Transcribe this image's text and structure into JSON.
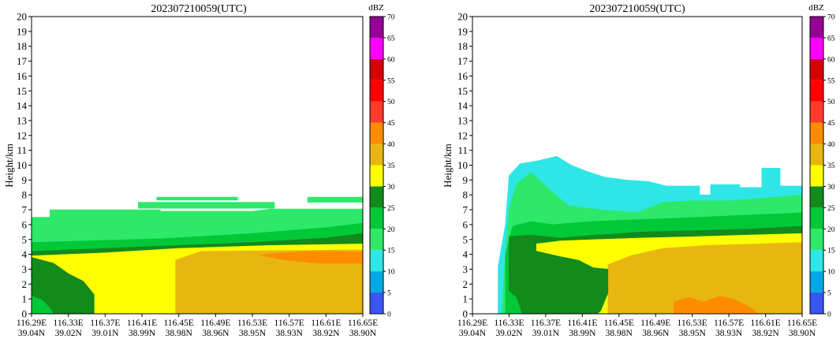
{
  "palette": [
    {
      "min": 0,
      "max": 5,
      "color": "#3a55f2"
    },
    {
      "min": 5,
      "max": 10,
      "color": "#00a8e6"
    },
    {
      "min": 10,
      "max": 15,
      "color": "#2ee6e6"
    },
    {
      "min": 15,
      "max": 20,
      "color": "#2ee86a"
    },
    {
      "min": 20,
      "max": 25,
      "color": "#00c837"
    },
    {
      "min": 25,
      "max": 30,
      "color": "#138a1c"
    },
    {
      "min": 30,
      "max": 35,
      "color": "#ffff00"
    },
    {
      "min": 35,
      "max": 40,
      "color": "#e8b610"
    },
    {
      "min": 40,
      "max": 45,
      "color": "#ff8c00"
    },
    {
      "min": 45,
      "max": 50,
      "color": "#ff3b2b"
    },
    {
      "min": 50,
      "max": 55,
      "color": "#ff0000"
    },
    {
      "min": 55,
      "max": 60,
      "color": "#d60000"
    },
    {
      "min": 60,
      "max": 65,
      "color": "#ff00ff"
    },
    {
      "min": 65,
      "max": 70,
      "color": "#960096"
    }
  ],
  "chart_data": [
    {
      "type": "heatmap",
      "title": "202307210059(UTC)",
      "ylabel": "Height/km",
      "ylim": [
        0,
        20
      ],
      "yticks": [
        "0",
        "1",
        "2",
        "3",
        "4",
        "5",
        "6",
        "7",
        "8",
        "9",
        "10",
        "11",
        "12",
        "13",
        "14",
        "15",
        "16",
        "17",
        "18",
        "19",
        "20"
      ],
      "xticks": [
        {
          "lon": "116.29E",
          "lat": "39.04N"
        },
        {
          "lon": "116.33E",
          "lat": "39.02N"
        },
        {
          "lon": "116.37E",
          "lat": "39.01N"
        },
        {
          "lon": "116.41E",
          "lat": "38.99N"
        },
        {
          "lon": "116.45E",
          "lat": "38.98N"
        },
        {
          "lon": "116.49E",
          "lat": "38.96N"
        },
        {
          "lon": "116.53E",
          "lat": "38.95N"
        },
        {
          "lon": "116.57E",
          "lat": "38.93N"
        },
        {
          "lon": "116.61E",
          "lat": "38.92N"
        },
        {
          "lon": "116.65E",
          "lat": "38.90N"
        }
      ],
      "colorbar_label": "dBZ",
      "colorbar_ticks": [
        "0",
        "5",
        "10",
        "15",
        "20",
        "25",
        "30",
        "35",
        "40",
        "45",
        "50",
        "55",
        "60",
        "65",
        "70"
      ],
      "layers": [
        {
          "dbz": 17,
          "pts": [
            [
              0,
              0
            ],
            [
              0,
              6.5
            ],
            [
              0.5,
              6.5
            ],
            [
              0.5,
              7
            ],
            [
              3.5,
              7
            ],
            [
              3.5,
              6.9
            ],
            [
              6,
              6.9
            ],
            [
              6.5,
              7.05
            ],
            [
              9,
              7.05
            ],
            [
              9,
              0
            ]
          ]
        },
        {
          "dbz": 17,
          "pts": [
            [
              2.9,
              7.1
            ],
            [
              6.6,
              7.1
            ],
            [
              6.6,
              7.5
            ],
            [
              2.9,
              7.5
            ]
          ]
        },
        {
          "dbz": 17,
          "pts": [
            [
              3.4,
              7.65
            ],
            [
              5.6,
              7.65
            ],
            [
              5.6,
              7.85
            ],
            [
              3.4,
              7.85
            ]
          ]
        },
        {
          "dbz": 17,
          "pts": [
            [
              7.5,
              7.5
            ],
            [
              9,
              7.5
            ],
            [
              9,
              7.85
            ],
            [
              7.5,
              7.85
            ]
          ]
        },
        {
          "dbz": 22,
          "pts": [
            [
              0,
              0
            ],
            [
              0,
              4.8
            ],
            [
              1.5,
              4.9
            ],
            [
              3.5,
              5.05
            ],
            [
              6,
              5.4
            ],
            [
              8,
              5.8
            ],
            [
              9,
              6.1
            ],
            [
              9,
              0
            ]
          ]
        },
        {
          "dbz": 27,
          "pts": [
            [
              0,
              0
            ],
            [
              0,
              4.2
            ],
            [
              1.5,
              4.35
            ],
            [
              3.5,
              4.55
            ],
            [
              6,
              4.8
            ],
            [
              8,
              5.1
            ],
            [
              9,
              5.4
            ],
            [
              9,
              0
            ]
          ]
        },
        {
          "dbz": 32,
          "pts": [
            [
              0,
              0
            ],
            [
              0,
              3.9
            ],
            [
              2,
              4.1
            ],
            [
              4,
              4.4
            ],
            [
              6.5,
              4.6
            ],
            [
              9,
              4.7
            ],
            [
              9,
              0
            ]
          ]
        },
        {
          "dbz": 37,
          "pts": [
            [
              3.9,
              0
            ],
            [
              3.9,
              3.6
            ],
            [
              4.6,
              4.2
            ],
            [
              6.5,
              4.25
            ],
            [
              9,
              4.3
            ],
            [
              9,
              0
            ]
          ]
        },
        {
          "dbz": 42,
          "pts": [
            [
              6.2,
              3.95
            ],
            [
              6.8,
              3.65
            ],
            [
              7.8,
              3.4
            ],
            [
              9,
              3.4
            ],
            [
              9,
              4.15
            ],
            [
              7.8,
              4.2
            ],
            [
              6.8,
              4.1
            ]
          ]
        },
        {
          "dbz": 32,
          "pts": [
            [
              1.7,
              0
            ],
            [
              1.7,
              2.4
            ],
            [
              1.9,
              3
            ],
            [
              2.5,
              3.7
            ],
            [
              3.9,
              3.9
            ],
            [
              3.9,
              0
            ]
          ]
        },
        {
          "dbz": 27,
          "pts": [
            [
              0,
              0
            ],
            [
              0,
              3.8
            ],
            [
              0.6,
              3.4
            ],
            [
              1.0,
              2.7
            ],
            [
              1.4,
              2.2
            ],
            [
              1.7,
              1.3
            ],
            [
              1.7,
              0
            ]
          ]
        },
        {
          "dbz": 22,
          "pts": [
            [
              0,
              0
            ],
            [
              0,
              1.2
            ],
            [
              0.3,
              0.9
            ],
            [
              0.5,
              0.4
            ],
            [
              0.6,
              0
            ]
          ]
        }
      ]
    },
    {
      "type": "heatmap",
      "title": "202307210059(UTC)",
      "ylabel": "Height/km",
      "ylim": [
        0,
        20
      ],
      "yticks": [
        "0",
        "1",
        "2",
        "3",
        "4",
        "5",
        "6",
        "7",
        "8",
        "9",
        "10",
        "11",
        "12",
        "13",
        "14",
        "15",
        "16",
        "17",
        "18",
        "19",
        "20"
      ],
      "xticks": [
        {
          "lon": "116.29E",
          "lat": "39.04N"
        },
        {
          "lon": "116.33E",
          "lat": "39.02N"
        },
        {
          "lon": "116.37E",
          "lat": "39.01N"
        },
        {
          "lon": "116.41E",
          "lat": "38.99N"
        },
        {
          "lon": "116.45E",
          "lat": "38.98N"
        },
        {
          "lon": "116.49E",
          "lat": "38.96N"
        },
        {
          "lon": "116.53E",
          "lat": "38.95N"
        },
        {
          "lon": "116.57E",
          "lat": "38.93N"
        },
        {
          "lon": "116.61E",
          "lat": "38.92N"
        },
        {
          "lon": "116.65E",
          "lat": "38.90N"
        }
      ],
      "colorbar_label": "dBZ",
      "colorbar_ticks": [
        "0",
        "5",
        "10",
        "15",
        "20",
        "25",
        "30",
        "35",
        "40",
        "45",
        "50",
        "55",
        "60",
        "65",
        "70"
      ],
      "layers": [
        {
          "dbz": 12,
          "pts": [
            [
              0.7,
              0
            ],
            [
              0.7,
              3.2
            ],
            [
              0.9,
              6
            ],
            [
              1.0,
              9.3
            ],
            [
              1.3,
              10.1
            ],
            [
              1.8,
              10.3
            ],
            [
              2.3,
              10.6
            ],
            [
              2.7,
              10
            ],
            [
              3.1,
              9.6
            ],
            [
              3.6,
              9.2
            ],
            [
              4.2,
              9.0
            ],
            [
              4.8,
              8.9
            ],
            [
              5.3,
              8.6
            ],
            [
              5.8,
              8.6
            ],
            [
              6.2,
              8.6
            ],
            [
              6.2,
              8.0
            ],
            [
              6.5,
              8.0
            ],
            [
              6.5,
              8.7
            ],
            [
              7.3,
              8.7
            ],
            [
              7.3,
              8.5
            ],
            [
              7.9,
              8.5
            ],
            [
              7.9,
              9.8
            ],
            [
              8.4,
              9.8
            ],
            [
              8.4,
              8.6
            ],
            [
              9,
              8.6
            ],
            [
              9,
              0
            ]
          ]
        },
        {
          "dbz": 17,
          "pts": [
            [
              0.8,
              0
            ],
            [
              0.9,
              4
            ],
            [
              1.0,
              7
            ],
            [
              1.2,
              8.7
            ],
            [
              1.6,
              9.5
            ],
            [
              2.0,
              8.6
            ],
            [
              2.6,
              7.3
            ],
            [
              3.5,
              7.0
            ],
            [
              4.5,
              6.8
            ],
            [
              5.2,
              7.5
            ],
            [
              6.0,
              7.6
            ],
            [
              7.0,
              7.6
            ],
            [
              8.0,
              7.8
            ],
            [
              9,
              8.0
            ],
            [
              9,
              0
            ]
          ]
        },
        {
          "dbz": 22,
          "pts": [
            [
              0.9,
              0
            ],
            [
              0.9,
              4
            ],
            [
              1.1,
              5.9
            ],
            [
              1.6,
              6.2
            ],
            [
              2.2,
              6.0
            ],
            [
              3.2,
              6.2
            ],
            [
              4.2,
              6.3
            ],
            [
              5.2,
              6.4
            ],
            [
              6.2,
              6.5
            ],
            [
              7.2,
              6.6
            ],
            [
              9,
              6.8
            ],
            [
              9,
              0
            ]
          ]
        },
        {
          "dbz": 27,
          "pts": [
            [
              1.0,
              0
            ],
            [
              1.0,
              5.2
            ],
            [
              1.6,
              5.3
            ],
            [
              2.4,
              5.1
            ],
            [
              3.4,
              5.3
            ],
            [
              4.6,
              5.5
            ],
            [
              6.2,
              5.6
            ],
            [
              7.6,
              5.7
            ],
            [
              9,
              5.9
            ],
            [
              9,
              0
            ]
          ]
        },
        {
          "dbz": 32,
          "pts": [
            [
              1.75,
              0
            ],
            [
              1.75,
              4.7
            ],
            [
              2.4,
              4.9
            ],
            [
              3.4,
              5.0
            ],
            [
              4.6,
              5.1
            ],
            [
              6.2,
              5.2
            ],
            [
              7.6,
              5.3
            ],
            [
              9,
              5.4
            ],
            [
              9,
              0
            ]
          ]
        },
        {
          "dbz": 37,
          "pts": [
            [
              3.7,
              0
            ],
            [
              3.7,
              3.3
            ],
            [
              4.3,
              3.9
            ],
            [
              5.2,
              4.4
            ],
            [
              6.4,
              4.6
            ],
            [
              7.8,
              4.7
            ],
            [
              9,
              4.8
            ],
            [
              9,
              0
            ]
          ]
        },
        {
          "dbz": 42,
          "pts": [
            [
              5.5,
              0
            ],
            [
              5.5,
              0.8
            ],
            [
              5.9,
              1.1
            ],
            [
              6.3,
              0.8
            ],
            [
              6.8,
              1.2
            ],
            [
              7.2,
              0.9
            ],
            [
              7.6,
              0.4
            ],
            [
              7.8,
              0
            ]
          ]
        },
        {
          "dbz": 27,
          "pts": [
            [
              1.1,
              0
            ],
            [
              1.1,
              4.2
            ],
            [
              1.6,
              4.3
            ],
            [
              2.3,
              3.9
            ],
            [
              2.9,
              3.6
            ],
            [
              3.3,
              3.1
            ],
            [
              3.7,
              3.0
            ],
            [
              3.7,
              1.4
            ],
            [
              3.5,
              0.2
            ],
            [
              3.4,
              0
            ]
          ]
        },
        {
          "dbz": 22,
          "pts": [
            [
              0.95,
              0
            ],
            [
              0.95,
              1.6
            ],
            [
              1.2,
              1.1
            ],
            [
              1.35,
              0
            ]
          ]
        }
      ]
    }
  ]
}
